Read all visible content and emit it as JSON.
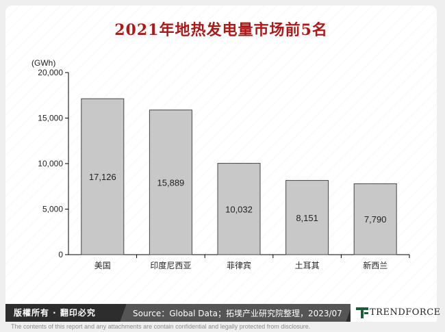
{
  "title": "2021年地热发电量市场前5名",
  "unit": "(GWh)",
  "footer": {
    "copyright": "版權所有 · 翻印必究",
    "source": "Source：Global Data；拓墣产业研究院整理，2023/07",
    "logo": "TRENDFORCE"
  },
  "disclaimer": "The contents of this report and any attachments are contain confidential and legally protected from disclosure.",
  "colors": {
    "title": "#b01818",
    "bar": "#c8c8c8",
    "bar_stroke": "#444444"
  },
  "chart_data": {
    "type": "bar",
    "title": "2021年地热发电量市场前5名",
    "ylabel": "(GWh)",
    "xlabel": "",
    "categories": [
      "美国",
      "印度尼西亚",
      "菲律宾",
      "土耳其",
      "新西兰"
    ],
    "values": [
      17126,
      15889,
      10032,
      8151,
      7790
    ],
    "value_labels": [
      "17,126",
      "15,889",
      "10,032",
      "8,151",
      "7,790"
    ],
    "ylim": [
      0,
      20000
    ],
    "yticks": [
      0,
      5000,
      10000,
      15000,
      20000
    ],
    "ytick_labels": [
      "0",
      "5,000",
      "10,000",
      "15,000",
      "20,000"
    ],
    "grid": false,
    "legend": "none"
  }
}
